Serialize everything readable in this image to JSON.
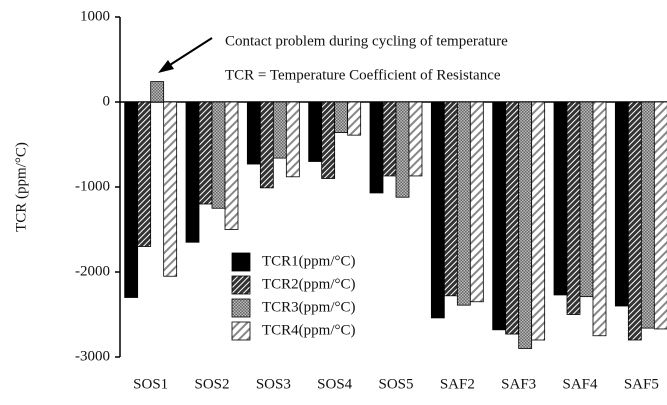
{
  "chart_data": {
    "type": "bar",
    "y_label": "TCR (ppm/°C)",
    "annotations": [
      "Contact problem during cycling of temperature",
      "TCR = Temperature Coefficient of Resistance"
    ],
    "categories": [
      "SOS1",
      "SOS2",
      "SOS3",
      "SOS4",
      "SOS5",
      "SAF2",
      "SAF3",
      "SAF4",
      "SAF5"
    ],
    "series": [
      {
        "name": "TCR1(ppm/°C)",
        "color": "#000000",
        "values": [
          -2300,
          -1650,
          -730,
          -700,
          -1070,
          -2540,
          -2680,
          -2270,
          -2400
        ]
      },
      {
        "name": "TCR2(ppm/°C)",
        "color": "#333333",
        "values": [
          -1700,
          -1200,
          -1010,
          -900,
          -870,
          -2280,
          -2730,
          -2500,
          -2800
        ]
      },
      {
        "name": "TCR3(ppm/°C)",
        "color": "#666666",
        "values": [
          240,
          -1250,
          -660,
          -360,
          -1120,
          -2390,
          -2900,
          -2290,
          -2660
        ]
      },
      {
        "name": "TCR4(ppm/°C)",
        "color": "#888888",
        "values": [
          -2050,
          -1500,
          -880,
          -390,
          -870,
          -2350,
          -2800,
          -2750,
          -2670
        ]
      }
    ],
    "ylim": [
      -3000,
      1000
    ],
    "yticks": [
      -3000,
      -2000,
      -1000,
      0,
      1000
    ]
  }
}
